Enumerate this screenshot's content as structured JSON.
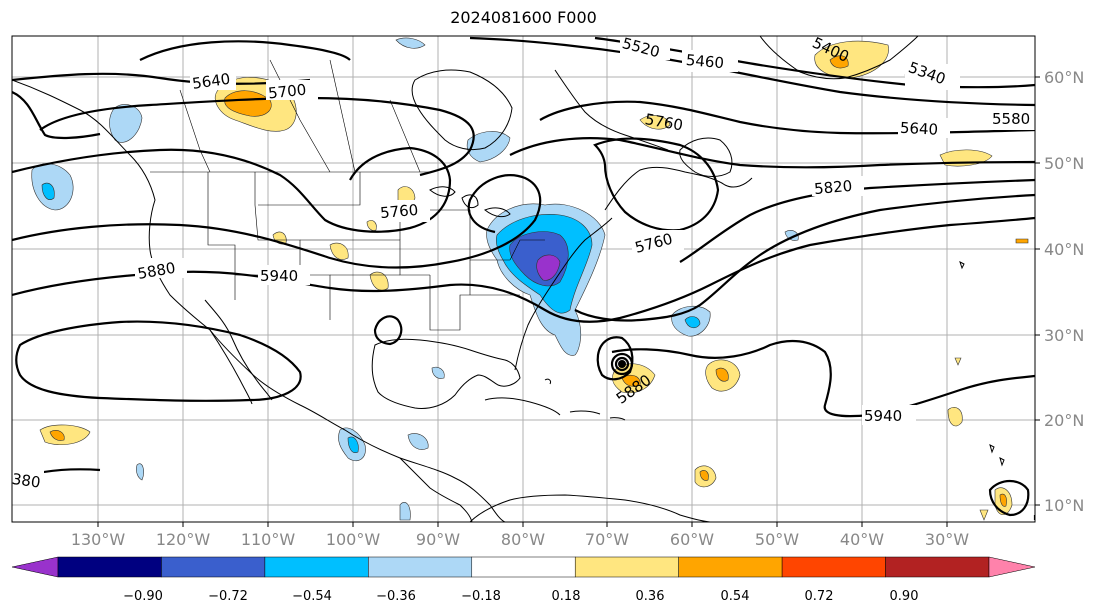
{
  "title": "2024081600 F000",
  "longitude_labels": [
    "130°W",
    "120°W",
    "110°W",
    "100°W",
    "90°W",
    "80°W",
    "70°W",
    "60°W",
    "50°W",
    "40°W",
    "30°W"
  ],
  "latitude_labels": [
    "60°N",
    "50°N",
    "40°N",
    "30°N",
    "20°N",
    "10°N"
  ],
  "colorbar": {
    "tick_labels": [
      "−0.90",
      "−0.72",
      "−0.54",
      "−0.36",
      "−0.18",
      "0.18",
      "0.36",
      "0.54",
      "0.72",
      "0.90"
    ],
    "colors": [
      "#9932cc",
      "#000080",
      "#3a5fcd",
      "#00bfff",
      "#add8f6",
      "#ffffff",
      "#ffe680",
      "#ffa500",
      "#ff4500",
      "#b22222",
      "#ff82ab"
    ]
  },
  "contour_labels": [
    "5640",
    "5700",
    "5520",
    "5460",
    "5400",
    "5340",
    "5760",
    "5640",
    "5580",
    "5760",
    "5820",
    "5760",
    "5880",
    "5940",
    "5880",
    "5940",
    "380"
  ]
}
